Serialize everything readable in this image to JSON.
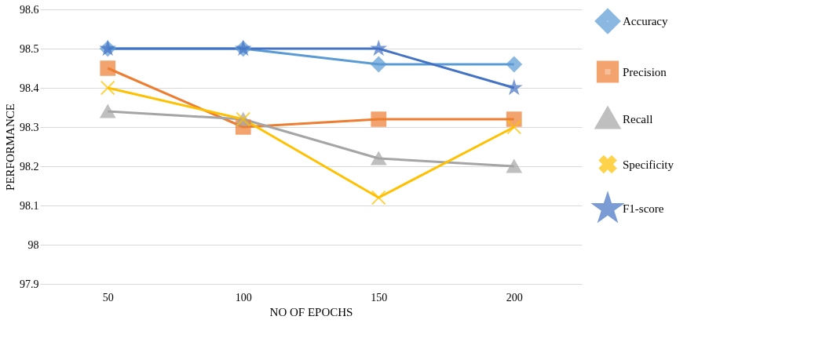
{
  "chart_data": {
    "type": "line",
    "xlabel": "NO OF EPOCHS",
    "ylabel": "PERFORMANCE",
    "categories": [
      "50",
      "100",
      "150",
      "200"
    ],
    "series": [
      {
        "name": "Accuracy",
        "color": "#5b9bd5",
        "marker": "diamond",
        "values": [
          98.5,
          98.5,
          98.46,
          98.46
        ]
      },
      {
        "name": "Precision",
        "color": "#ed7d31",
        "marker": "square",
        "values": [
          98.45,
          98.3,
          98.32,
          98.32
        ]
      },
      {
        "name": "Recall",
        "color": "#a5a5a5",
        "marker": "triangle",
        "values": [
          98.34,
          98.32,
          98.22,
          98.2
        ]
      },
      {
        "name": "Specificity",
        "color": "#ffc000",
        "marker": "cross",
        "values": [
          98.4,
          98.32,
          98.12,
          98.3
        ]
      },
      {
        "name": "F1-score",
        "color": "#4472c4",
        "marker": "star",
        "values": [
          98.5,
          98.5,
          98.5,
          98.4
        ]
      }
    ],
    "ylim": [
      97.9,
      98.6
    ],
    "yticks": [
      97.9,
      98,
      98.1,
      98.2,
      98.3,
      98.4,
      98.5,
      98.6
    ],
    "grid": "y",
    "legend": "right",
    "line_style": "solid"
  }
}
